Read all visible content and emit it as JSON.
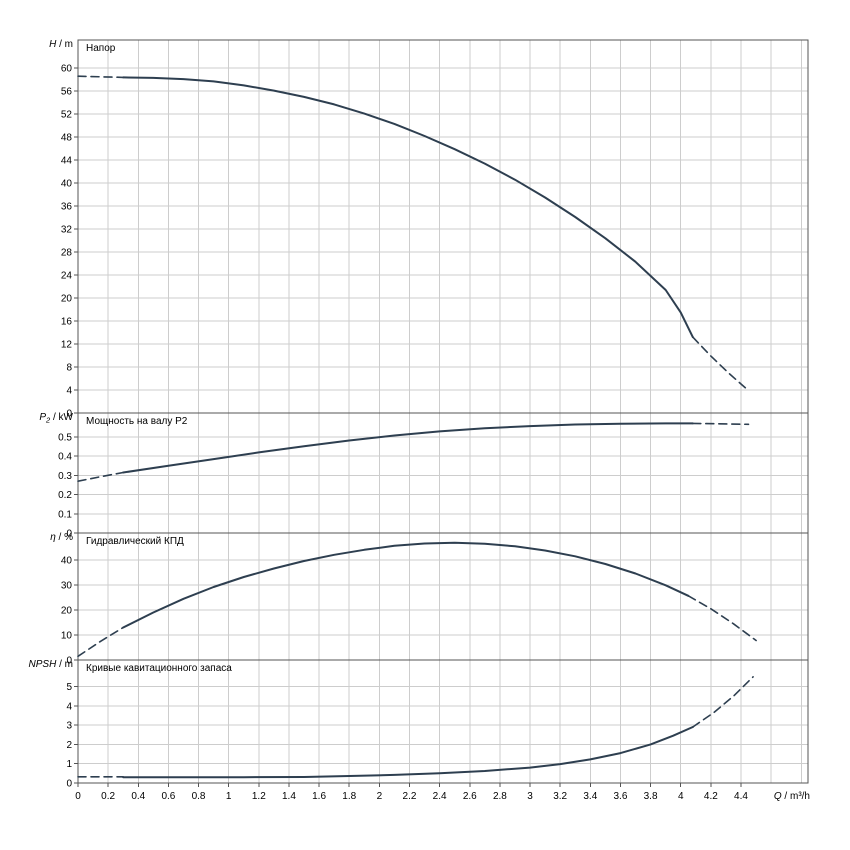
{
  "meta": {
    "background": "#ffffff",
    "curve_color": "#2e3f50",
    "grid_color": "#cdcdcd",
    "axis_color": "#555555",
    "text_color": "#000000"
  },
  "x_axis": {
    "label_var": "Q",
    "label_unit": " / m³/h",
    "ticks": [
      0,
      0.2,
      0.4,
      0.6,
      0.8,
      1,
      1.2,
      1.4,
      1.6,
      1.8,
      2,
      2.2,
      2.4,
      2.6,
      2.8,
      3,
      3.2,
      3.4,
      3.6,
      3.8,
      4,
      4.2,
      4.4
    ],
    "grid_extra": [
      4.6,
      4.8
    ],
    "max": 4.844
  },
  "chart_data": [
    {
      "type": "line",
      "title": "Напор",
      "xlabel": "Q / m³/h",
      "ylabel_var": "H",
      "ylabel_sub": "",
      "ylabel_unit": " / m",
      "ylim": [
        0,
        64.9
      ],
      "yticks": [
        0,
        4,
        8,
        12,
        16,
        20,
        24,
        28,
        32,
        36,
        40,
        44,
        48,
        52,
        56,
        60
      ],
      "grid": true,
      "legend": "none",
      "series": [
        {
          "name": "head-curve",
          "segments": [
            {
              "style": "dashed",
              "points": [
                [
                  0,
                  58.6
                ],
                [
                  0.15,
                  58.5
                ],
                [
                  0.3,
                  58.4
                ]
              ]
            },
            {
              "style": "solid",
              "points": [
                [
                  0.3,
                  58.4
                ],
                [
                  0.5,
                  58.3
                ],
                [
                  0.7,
                  58.1
                ],
                [
                  0.9,
                  57.7
                ],
                [
                  1.1,
                  57.0
                ],
                [
                  1.3,
                  56.1
                ],
                [
                  1.5,
                  55.0
                ],
                [
                  1.7,
                  53.7
                ],
                [
                  1.9,
                  52.1
                ],
                [
                  2.1,
                  50.3
                ],
                [
                  2.3,
                  48.2
                ],
                [
                  2.5,
                  45.9
                ],
                [
                  2.7,
                  43.4
                ],
                [
                  2.9,
                  40.6
                ],
                [
                  3.1,
                  37.5
                ],
                [
                  3.3,
                  34.1
                ],
                [
                  3.5,
                  30.4
                ],
                [
                  3.7,
                  26.3
                ],
                [
                  3.9,
                  21.4
                ],
                [
                  4.0,
                  17.5
                ],
                [
                  4.08,
                  13.2
                ]
              ]
            },
            {
              "style": "dashed",
              "points": [
                [
                  4.08,
                  13.2
                ],
                [
                  4.2,
                  9.9
                ],
                [
                  4.32,
                  6.9
                ],
                [
                  4.45,
                  3.9
                ]
              ]
            }
          ]
        }
      ]
    },
    {
      "type": "line",
      "title": "Мощность на валу P2",
      "xlabel": "Q / m³/h",
      "ylabel_var": "P",
      "ylabel_sub": "2",
      "ylabel_unit": " / kW",
      "ylim": [
        0,
        0.625
      ],
      "yticks": [
        0,
        0.1,
        0.2,
        0.3,
        0.4,
        0.5
      ],
      "grid": true,
      "legend": "none",
      "series": [
        {
          "name": "shaft-power-curve",
          "segments": [
            {
              "style": "dashed",
              "points": [
                [
                  0,
                  0.27
                ],
                [
                  0.15,
                  0.293
                ],
                [
                  0.3,
                  0.315
                ]
              ]
            },
            {
              "style": "solid",
              "points": [
                [
                  0.3,
                  0.315
                ],
                [
                  0.6,
                  0.35
                ],
                [
                  0.9,
                  0.385
                ],
                [
                  1.2,
                  0.42
                ],
                [
                  1.5,
                  0.452
                ],
                [
                  1.8,
                  0.482
                ],
                [
                  2.1,
                  0.508
                ],
                [
                  2.4,
                  0.529
                ],
                [
                  2.7,
                  0.546
                ],
                [
                  3.0,
                  0.557
                ],
                [
                  3.3,
                  0.565
                ],
                [
                  3.6,
                  0.569
                ],
                [
                  3.9,
                  0.571
                ],
                [
                  4.08,
                  0.571
                ]
              ]
            },
            {
              "style": "dashed",
              "points": [
                [
                  4.08,
                  0.571
                ],
                [
                  4.25,
                  0.569
                ],
                [
                  4.45,
                  0.566
                ]
              ]
            }
          ]
        }
      ]
    },
    {
      "type": "line",
      "title": "Гидравлический КПД",
      "xlabel": "Q / m³/h",
      "ylabel_var": "η",
      "ylabel_sub": "",
      "ylabel_unit": " / %",
      "ylim": [
        0,
        50.8
      ],
      "yticks": [
        0,
        10,
        20,
        30,
        40
      ],
      "grid": true,
      "legend": "none",
      "series": [
        {
          "name": "efficiency-curve",
          "segments": [
            {
              "style": "dashed",
              "points": [
                [
                  0,
                  1.5
                ],
                [
                  0.15,
                  7.5
                ],
                [
                  0.3,
                  13
                ]
              ]
            },
            {
              "style": "solid",
              "points": [
                [
                  0.3,
                  13
                ],
                [
                  0.5,
                  19
                ],
                [
                  0.7,
                  24.5
                ],
                [
                  0.9,
                  29.2
                ],
                [
                  1.1,
                  33.2
                ],
                [
                  1.3,
                  36.6
                ],
                [
                  1.5,
                  39.6
                ],
                [
                  1.7,
                  42.1
                ],
                [
                  1.9,
                  44.1
                ],
                [
                  2.1,
                  45.7
                ],
                [
                  2.3,
                  46.6
                ],
                [
                  2.5,
                  46.9
                ],
                [
                  2.7,
                  46.5
                ],
                [
                  2.9,
                  45.5
                ],
                [
                  3.1,
                  43.8
                ],
                [
                  3.3,
                  41.5
                ],
                [
                  3.5,
                  38.4
                ],
                [
                  3.7,
                  34.6
                ],
                [
                  3.9,
                  29.9
                ],
                [
                  4.05,
                  25.7
                ]
              ]
            },
            {
              "style": "dashed",
              "points": [
                [
                  4.05,
                  25.7
                ],
                [
                  4.2,
                  20.5
                ],
                [
                  4.35,
                  14.5
                ],
                [
                  4.5,
                  7.8
                ]
              ]
            }
          ]
        }
      ]
    },
    {
      "type": "line",
      "title": "Кривые кавитационного запаса",
      "xlabel": "Q / m³/h",
      "ylabel_var": "NPSH",
      "ylabel_sub": "",
      "ylabel_unit": " / m",
      "ylim": [
        0,
        6.37
      ],
      "yticks": [
        0,
        1,
        2,
        3,
        4,
        5
      ],
      "grid": true,
      "legend": "none",
      "series": [
        {
          "name": "npsh-curve",
          "segments": [
            {
              "style": "dashed",
              "points": [
                [
                  0,
                  0.32
                ],
                [
                  0.15,
                  0.32
                ],
                [
                  0.3,
                  0.32
                ]
              ]
            },
            {
              "style": "solid",
              "points": [
                [
                  0.3,
                  0.3
                ],
                [
                  0.7,
                  0.3
                ],
                [
                  1.1,
                  0.3
                ],
                [
                  1.5,
                  0.31
                ],
                [
                  1.8,
                  0.36
                ],
                [
                  2.1,
                  0.42
                ],
                [
                  2.4,
                  0.5
                ],
                [
                  2.7,
                  0.62
                ],
                [
                  3.0,
                  0.8
                ],
                [
                  3.2,
                  0.98
                ],
                [
                  3.4,
                  1.22
                ],
                [
                  3.6,
                  1.55
                ],
                [
                  3.8,
                  2.0
                ],
                [
                  3.95,
                  2.45
                ],
                [
                  4.08,
                  2.9
                ]
              ]
            },
            {
              "style": "dashed",
              "points": [
                [
                  4.08,
                  2.9
                ],
                [
                  4.22,
                  3.65
                ],
                [
                  4.35,
                  4.5
                ],
                [
                  4.48,
                  5.5
                ]
              ]
            }
          ]
        }
      ]
    }
  ]
}
